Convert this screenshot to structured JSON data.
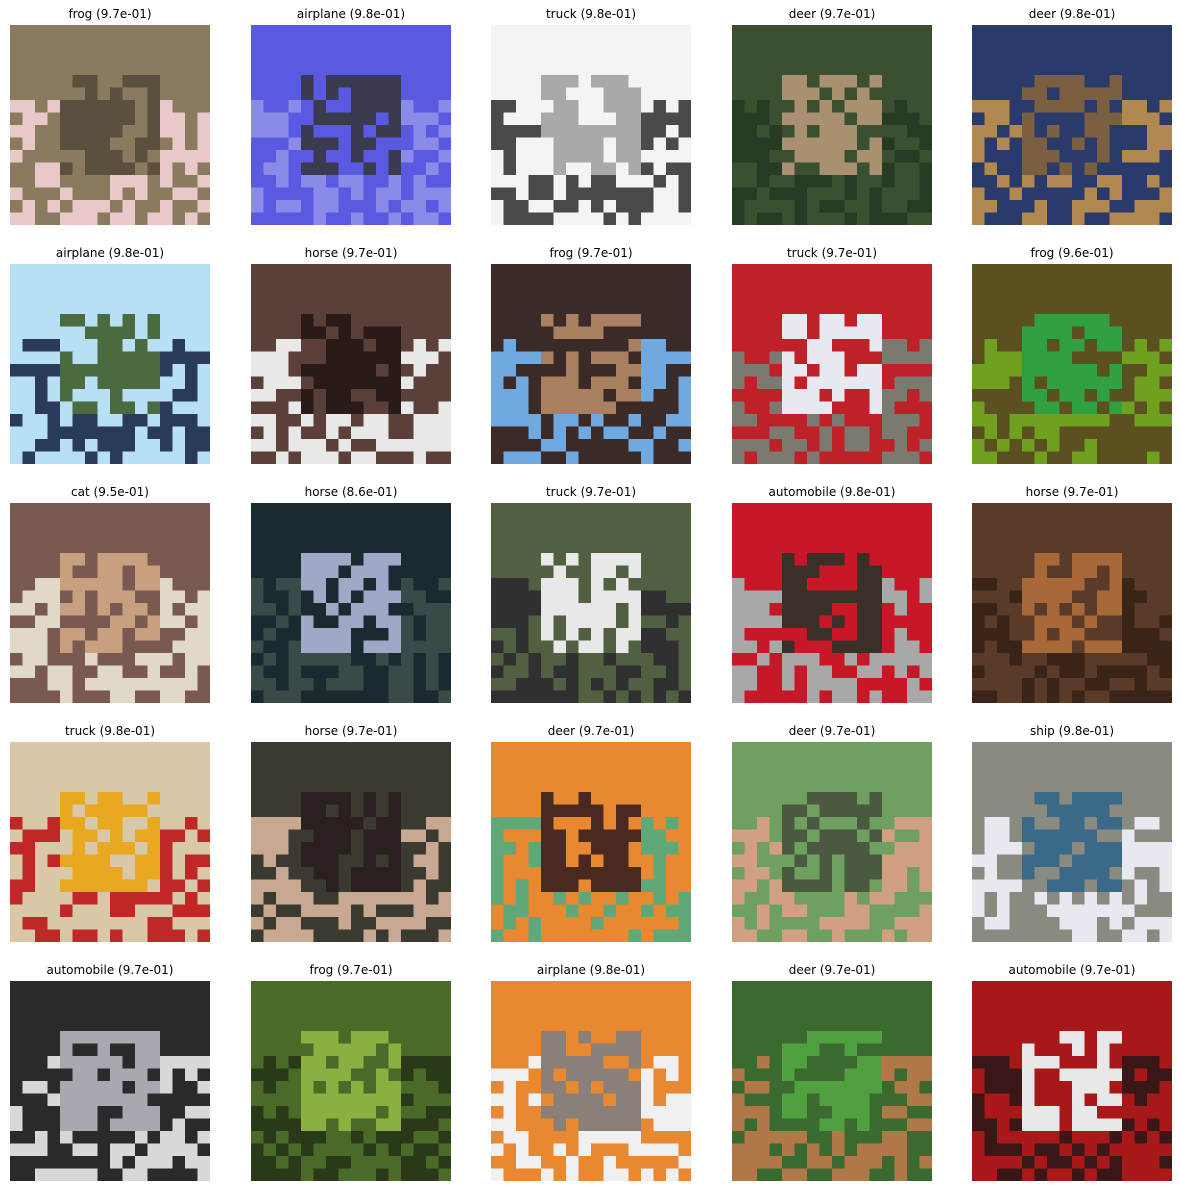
{
  "figure": {
    "background": "#ffffff",
    "rows": 5,
    "cols": 5
  },
  "tiles": [
    {
      "label": "frog",
      "score": "9.7e-01",
      "caption": "frog (9.7e-01)",
      "colors": [
        "#8a7a5e",
        "#5b5040",
        "#e8c8c8"
      ]
    },
    {
      "label": "airplane",
      "score": "9.8e-01",
      "caption": "airplane (9.8e-01)",
      "colors": [
        "#5a5ae0",
        "#3a3a50",
        "#8a8ae8"
      ]
    },
    {
      "label": "truck",
      "score": "9.8e-01",
      "caption": "truck (9.8e-01)",
      "colors": [
        "#f2f4f6",
        "#a8aaa8",
        "#4a4a4a"
      ]
    },
    {
      "label": "deer",
      "score": "9.7e-01",
      "caption": "deer (9.7e-01)",
      "colors": [
        "#3a5030",
        "#a89070",
        "#263a24"
      ]
    },
    {
      "label": "deer",
      "score": "9.8e-01",
      "caption": "deer (9.8e-01)",
      "colors": [
        "#2a3a6a",
        "#7a6040",
        "#b08850"
      ]
    },
    {
      "label": "airplane",
      "score": "9.8e-01",
      "caption": "airplane (9.8e-01)",
      "colors": [
        "#b8e0f4",
        "#4a6a40",
        "#2a3a5a"
      ]
    },
    {
      "label": "horse",
      "score": "9.7e-01",
      "caption": "horse (9.7e-01)",
      "colors": [
        "#5a4038",
        "#2a1a18",
        "#e8e8e8"
      ]
    },
    {
      "label": "frog",
      "score": "9.7e-01",
      "caption": "frog (9.7e-01)",
      "colors": [
        "#3a2a28",
        "#a88060",
        "#70a8e0"
      ]
    },
    {
      "label": "truck",
      "score": "9.7e-01",
      "caption": "truck (9.7e-01)",
      "colors": [
        "#c02028",
        "#e8e8f0",
        "#7a7a70"
      ]
    },
    {
      "label": "frog",
      "score": "9.6e-01",
      "caption": "frog (9.6e-01)",
      "colors": [
        "#5a5020",
        "#30a040",
        "#70a020"
      ]
    },
    {
      "label": "cat",
      "score": "9.5e-01",
      "caption": "cat (9.5e-01)",
      "colors": [
        "#7a5a50",
        "#c8a080",
        "#e0d8c8"
      ]
    },
    {
      "label": "horse",
      "score": "8.6e-01",
      "caption": "horse (8.6e-01)",
      "colors": [
        "#1a2a30",
        "#a0a8c8",
        "#3a4a48"
      ]
    },
    {
      "label": "truck",
      "score": "9.7e-01",
      "caption": "truck (9.7e-01)",
      "colors": [
        "#506040",
        "#e8e8e8",
        "#303030"
      ]
    },
    {
      "label": "automobile",
      "score": "9.8e-01",
      "caption": "automobile (9.8e-01)",
      "colors": [
        "#c81828",
        "#3a3028",
        "#a8a8a8"
      ]
    },
    {
      "label": "horse",
      "score": "9.7e-01",
      "caption": "horse (9.7e-01)",
      "colors": [
        "#5a3a28",
        "#a86838",
        "#3a2418"
      ]
    },
    {
      "label": "truck",
      "score": "9.8e-01",
      "caption": "truck (9.8e-01)",
      "colors": [
        "#d8c8a8",
        "#e8a820",
        "#c02828"
      ]
    },
    {
      "label": "horse",
      "score": "9.7e-01",
      "caption": "horse (9.7e-01)",
      "colors": [
        "#3a3a30",
        "#2a2020",
        "#c8a890"
      ]
    },
    {
      "label": "deer",
      "score": "9.7e-01",
      "caption": "deer (9.7e-01)",
      "colors": [
        "#e88830",
        "#4a2a20",
        "#60a878"
      ]
    },
    {
      "label": "deer",
      "score": "9.7e-01",
      "caption": "deer (9.7e-01)",
      "colors": [
        "#70a060",
        "#4a5a40",
        "#d0a080"
      ]
    },
    {
      "label": "ship",
      "score": "9.8e-01",
      "caption": "ship (9.8e-01)",
      "colors": [
        "#8a8a80",
        "#3a6a88",
        "#e8e8f0"
      ]
    },
    {
      "label": "automobile",
      "score": "9.7e-01",
      "caption": "automobile (9.7e-01)",
      "colors": [
        "#2a2a2a",
        "#a8a8b0",
        "#d8d8d8"
      ]
    },
    {
      "label": "frog",
      "score": "9.7e-01",
      "caption": "frog (9.7e-01)",
      "colors": [
        "#4a6a28",
        "#8ab040",
        "#2a3a18"
      ]
    },
    {
      "label": "airplane",
      "score": "9.8e-01",
      "caption": "airplane (9.8e-01)",
      "colors": [
        "#e88830",
        "#8a8078",
        "#f0f0f0"
      ]
    },
    {
      "label": "deer",
      "score": "9.7e-01",
      "caption": "deer (9.7e-01)",
      "colors": [
        "#3a6a30",
        "#50a040",
        "#b07848"
      ]
    },
    {
      "label": "automobile",
      "score": "9.7e-01",
      "caption": "automobile (9.7e-01)",
      "colors": [
        "#a81818",
        "#e8e8e8",
        "#3a1818"
      ]
    }
  ]
}
